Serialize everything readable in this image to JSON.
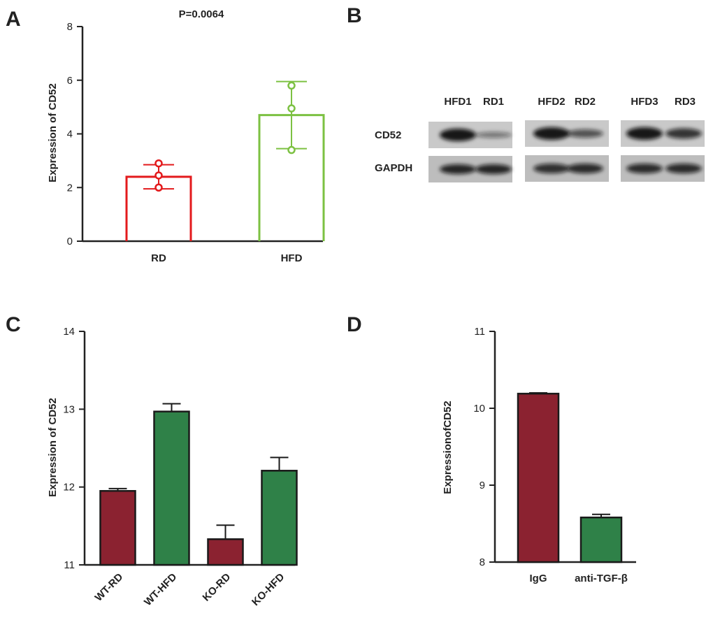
{
  "panels": {
    "A": {
      "label": "A"
    },
    "B": {
      "label": "B"
    },
    "C": {
      "label": "C"
    },
    "D": {
      "label": "D"
    }
  },
  "chart_data": [
    {
      "panel": "A",
      "type": "bar",
      "annotation": "P=0.0064",
      "categories": [
        "RD",
        "HFD"
      ],
      "values": [
        2.4,
        4.7
      ],
      "error": [
        0.45,
        1.25
      ],
      "points": [
        [
          2.0,
          2.45,
          2.9
        ],
        [
          3.4,
          4.95,
          5.8
        ]
      ],
      "colors": [
        "#e31a1c",
        "#7cc142"
      ],
      "ylabel": "Expression of CD52",
      "ylim": [
        0,
        8
      ],
      "yticks": [
        "0",
        "2",
        "4",
        "6",
        "8"
      ],
      "style": "open bars with mean ± SD and individual points",
      "grid": false
    },
    {
      "panel": "C",
      "type": "bar",
      "categories": [
        "WT-RD",
        "WT-HFD",
        "KO-RD",
        "KO-HFD"
      ],
      "values": [
        11.95,
        12.97,
        11.33,
        12.21
      ],
      "error": [
        0.03,
        0.1,
        0.18,
        0.17
      ],
      "colors": [
        "#8b2230",
        "#2f8148",
        "#8b2230",
        "#2f8148"
      ],
      "ylabel": "Expression of CD52",
      "ylim": [
        11,
        14
      ],
      "yticks": [
        "11",
        "12",
        "13",
        "14"
      ],
      "grid": false
    },
    {
      "panel": "D",
      "type": "bar",
      "categories": [
        "IgG",
        "anti-TGF-β"
      ],
      "values": [
        10.19,
        8.58
      ],
      "error": [
        0.01,
        0.04
      ],
      "colors": [
        "#8b2230",
        "#2f8148"
      ],
      "ylabel": "ExpressionofCD52",
      "ylim": [
        8,
        11
      ],
      "yticks": [
        "8",
        "9",
        "10",
        "11"
      ],
      "grid": false
    }
  ],
  "blot": {
    "rows": [
      "CD52",
      "GAPDH"
    ],
    "groups": [
      {
        "lanes": [
          "HFD1",
          "RD1"
        ],
        "cd52": [
          1.0,
          0.2
        ],
        "gapdh": [
          0.95,
          0.95
        ]
      },
      {
        "lanes": [
          "HFD2",
          "RD2"
        ],
        "cd52": [
          1.0,
          0.5
        ],
        "gapdh": [
          0.85,
          0.9
        ]
      },
      {
        "lanes": [
          "HFD3",
          "RD3"
        ],
        "cd52": [
          1.0,
          0.75
        ],
        "gapdh": [
          0.9,
          0.9
        ]
      }
    ]
  }
}
